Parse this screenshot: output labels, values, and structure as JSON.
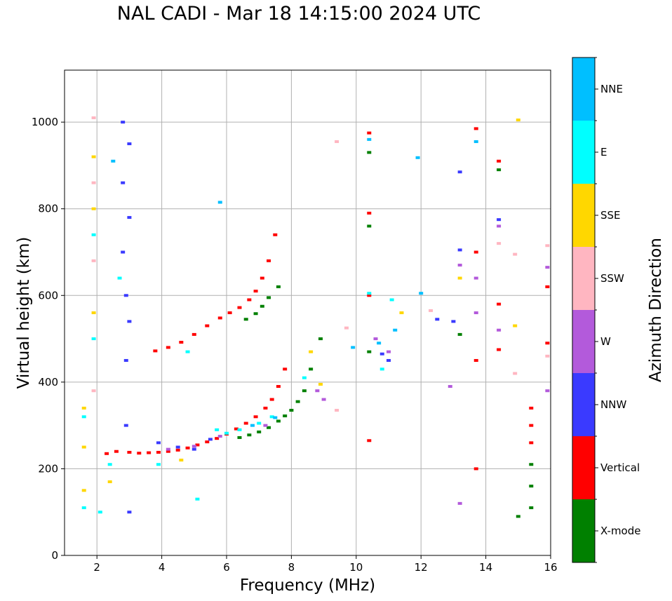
{
  "chart_data": {
    "type": "scatter",
    "title": "NAL CADI - Mar 18 14:15:00 2024 UTC",
    "xlabel": "Frequency (MHz)",
    "ylabel": "Virtual height (km)",
    "xlim": [
      1,
      16
    ],
    "ylim": [
      0,
      1120
    ],
    "xticks": [
      2,
      4,
      6,
      8,
      10,
      12,
      14,
      16
    ],
    "yticks": [
      0,
      200,
      400,
      600,
      800,
      1000
    ],
    "grid": true,
    "colorbar": {
      "label": "Azimuth Direction",
      "categories": [
        "X-mode",
        "Vertical",
        "NNW",
        "W",
        "SSW",
        "SSE",
        "E",
        "NNE"
      ],
      "colors": [
        "#008000",
        "#ff0000",
        "#3a3aff",
        "#b35adb",
        "#ffb6c1",
        "#ffd700",
        "#00ffff",
        "#00bfff"
      ]
    },
    "series": [
      {
        "name": "Vertical",
        "color": "#ff0000",
        "x": [
          2.3,
          2.6,
          3.0,
          3.3,
          3.6,
          3.9,
          4.2,
          4.5,
          4.8,
          5.1,
          5.4,
          5.7,
          6.0,
          6.3,
          6.6,
          6.9,
          7.2,
          7.4,
          7.6,
          7.8,
          3.8,
          4.2,
          4.6,
          5.0,
          5.4,
          5.8,
          6.1,
          6.4,
          6.7,
          6.9,
          7.1,
          7.3,
          7.5,
          10.4,
          10.4,
          10.4,
          10.4,
          13.7,
          13.7,
          13.7,
          13.7,
          14.4,
          14.4,
          14.4,
          15.4,
          15.4,
          15.4,
          15.9,
          15.9
        ],
        "y": [
          235,
          240,
          238,
          236,
          237,
          238,
          240,
          243,
          248,
          255,
          262,
          270,
          280,
          292,
          305,
          320,
          340,
          360,
          390,
          430,
          472,
          480,
          492,
          510,
          530,
          548,
          560,
          572,
          590,
          610,
          640,
          680,
          740,
          975,
          790,
          600,
          265,
          985,
          700,
          450,
          200,
          910,
          580,
          475,
          340,
          300,
          260,
          620,
          490
        ]
      },
      {
        "name": "X-mode",
        "color": "#008000",
        "x": [
          6.4,
          6.7,
          7.0,
          7.3,
          7.6,
          7.8,
          8.0,
          8.2,
          8.4,
          8.6,
          8.9,
          6.6,
          6.9,
          7.1,
          7.3,
          7.6,
          10.4,
          10.4,
          10.4,
          14.4,
          15.4,
          15.4,
          15.4,
          15.0,
          13.2
        ],
        "y": [
          272,
          278,
          285,
          295,
          310,
          322,
          335,
          355,
          380,
          430,
          500,
          545,
          558,
          575,
          595,
          620,
          930,
          760,
          470,
          890,
          210,
          160,
          110,
          90,
          510
        ]
      },
      {
        "name": "NNW",
        "color": "#3a3aff",
        "x": [
          2.8,
          2.8,
          2.8,
          2.9,
          2.9,
          2.9,
          3.0,
          3.0,
          3.0,
          3.0,
          3.9,
          4.5,
          5.0,
          5.5,
          10.8,
          11.0,
          12.5,
          13.0,
          13.2,
          13.2,
          14.4
        ],
        "y": [
          1000,
          860,
          700,
          600,
          450,
          300,
          950,
          780,
          540,
          100,
          260,
          250,
          245,
          268,
          465,
          450,
          545,
          540,
          885,
          705,
          775
        ]
      },
      {
        "name": "W",
        "color": "#b35adb",
        "x": [
          4.2,
          5.0,
          5.8,
          7.2,
          8.8,
          9.0,
          10.6,
          11.0,
          12.9,
          13.2,
          13.2,
          13.7,
          13.7,
          14.4,
          14.4,
          15.9,
          15.9
        ],
        "y": [
          245,
          252,
          275,
          300,
          380,
          360,
          500,
          470,
          390,
          120,
          670,
          640,
          560,
          760,
          520,
          665,
          380
        ]
      },
      {
        "name": "SSW",
        "color": "#ffb6c1",
        "x": [
          1.9,
          1.9,
          1.9,
          1.9,
          9.4,
          9.7,
          9.4,
          14.4,
          14.9,
          14.9,
          15.9,
          15.9,
          12.3
        ],
        "y": [
          1010,
          860,
          680,
          380,
          955,
          525,
          335,
          720,
          695,
          420,
          715,
          460,
          565
        ]
      },
      {
        "name": "SSE",
        "color": "#ffd700",
        "x": [
          1.6,
          1.6,
          1.6,
          1.9,
          1.9,
          1.9,
          2.4,
          4.6,
          8.6,
          8.9,
          11.4,
          13.2,
          15.0,
          14.9
        ],
        "y": [
          340,
          250,
          150,
          920,
          800,
          560,
          170,
          220,
          470,
          395,
          560,
          640,
          1005,
          530
        ]
      },
      {
        "name": "E",
        "color": "#00ffff",
        "x": [
          1.6,
          1.6,
          1.9,
          1.9,
          2.1,
          2.4,
          2.7,
          3.9,
          4.8,
          5.1,
          5.7,
          6.0,
          6.4,
          7.0,
          7.4,
          8.4,
          10.4,
          10.8,
          11.1
        ],
        "y": [
          320,
          110,
          740,
          500,
          100,
          210,
          640,
          210,
          470,
          130,
          290,
          282,
          290,
          305,
          320,
          410,
          605,
          430,
          590
        ]
      },
      {
        "name": "NNE",
        "color": "#00bfff",
        "x": [
          2.5,
          5.8,
          6.8,
          7.5,
          9.9,
          10.4,
          10.7,
          11.2,
          11.9,
          13.7,
          12.0
        ],
        "y": [
          910,
          815,
          300,
          318,
          480,
          960,
          490,
          520,
          918,
          955,
          605
        ]
      }
    ]
  }
}
